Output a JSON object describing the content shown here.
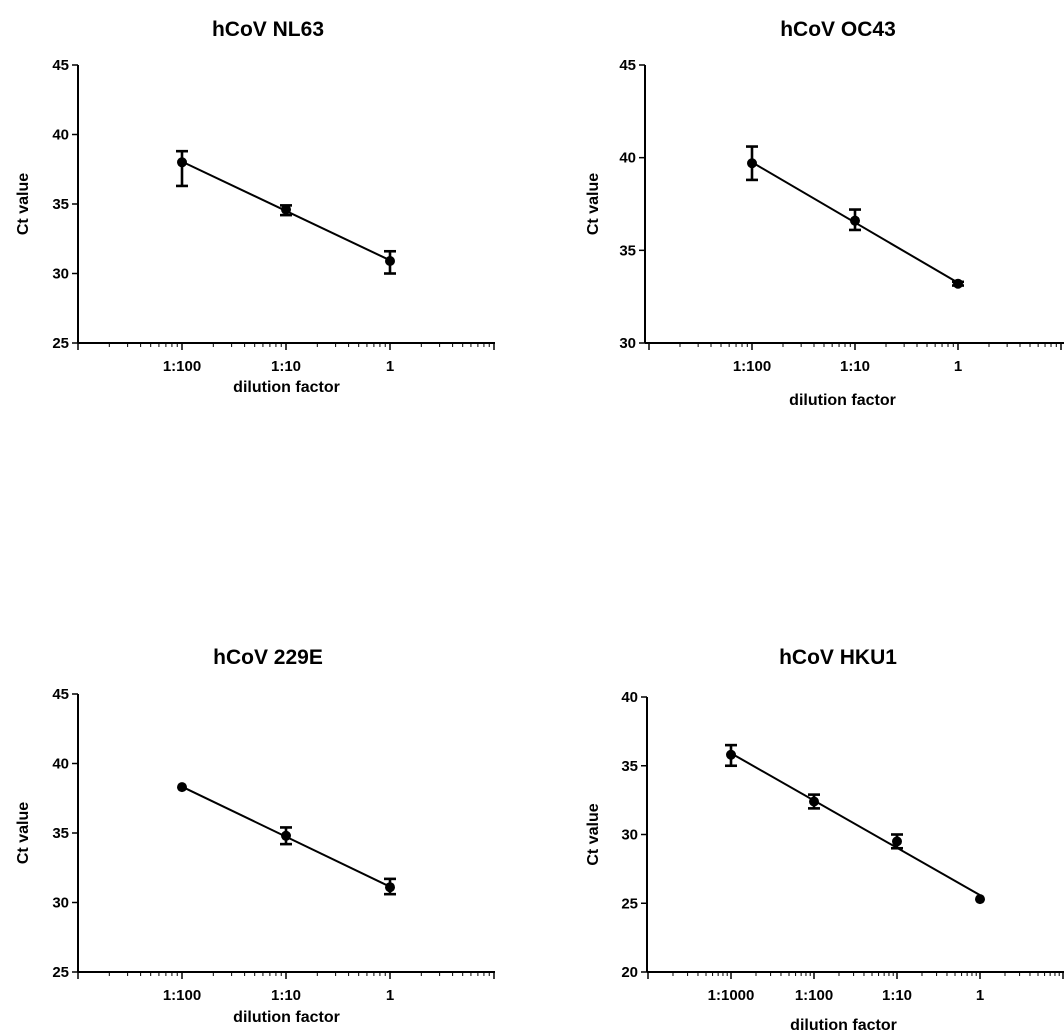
{
  "chart_data": [
    {
      "type": "scatter",
      "title": "hCoV NL63",
      "xlabel": "dilution factor",
      "ylabel": "Ct value",
      "x_scale": "log",
      "ylim": [
        25,
        45
      ],
      "yticks": [
        25,
        30,
        35,
        40,
        45
      ],
      "xtick_labels": [
        "1:100",
        "1:10",
        "1"
      ],
      "points": [
        {
          "x": "1:100",
          "y": 38.0,
          "err_low": 36.3,
          "err_high": 38.8
        },
        {
          "x": "1:10",
          "y": 34.6,
          "err_low": 34.2,
          "err_high": 34.9
        },
        {
          "x": "1",
          "y": 30.9,
          "err_low": 30.0,
          "err_high": 31.6
        }
      ]
    },
    {
      "type": "scatter",
      "title": "hCoV OC43",
      "xlabel": "dilution factor",
      "ylabel": "Ct value",
      "x_scale": "log",
      "ylim": [
        30,
        45
      ],
      "yticks": [
        30,
        35,
        40,
        45
      ],
      "xtick_labels": [
        "1:100",
        "1:10",
        "1"
      ],
      "points": [
        {
          "x": "1:100",
          "y": 39.7,
          "err_low": 38.8,
          "err_high": 40.6
        },
        {
          "x": "1:10",
          "y": 36.6,
          "err_low": 36.1,
          "err_high": 37.2
        },
        {
          "x": "1",
          "y": 33.2,
          "err_low": 33.1,
          "err_high": 33.3
        }
      ]
    },
    {
      "type": "scatter",
      "title": "hCoV 229E",
      "xlabel": "dilution factor",
      "ylabel": "Ct value",
      "x_scale": "log",
      "ylim": [
        25,
        45
      ],
      "yticks": [
        25,
        30,
        35,
        40,
        45
      ],
      "xtick_labels": [
        "1:100",
        "1:10",
        "1"
      ],
      "points": [
        {
          "x": "1:100",
          "y": 38.3,
          "err_low": 38.2,
          "err_high": 38.4
        },
        {
          "x": "1:10",
          "y": 34.8,
          "err_low": 34.2,
          "err_high": 35.4
        },
        {
          "x": "1",
          "y": 31.1,
          "err_low": 30.6,
          "err_high": 31.7
        }
      ]
    },
    {
      "type": "scatter",
      "title": "hCoV HKU1",
      "xlabel": "dilution factor",
      "ylabel": "Ct value",
      "x_scale": "log",
      "ylim": [
        20,
        40
      ],
      "yticks": [
        20,
        25,
        30,
        35,
        40
      ],
      "xtick_labels": [
        "1:1000",
        "1:100",
        "1:10",
        "1"
      ],
      "points": [
        {
          "x": "1:1000",
          "y": 35.8,
          "err_low": 35.0,
          "err_high": 36.5
        },
        {
          "x": "1:100",
          "y": 32.4,
          "err_low": 31.9,
          "err_high": 32.9
        },
        {
          "x": "1:10",
          "y": 29.5,
          "err_low": 29.0,
          "err_high": 30.0
        },
        {
          "x": "1",
          "y": 25.3,
          "err_low": 25.2,
          "err_high": 25.4
        }
      ]
    }
  ]
}
